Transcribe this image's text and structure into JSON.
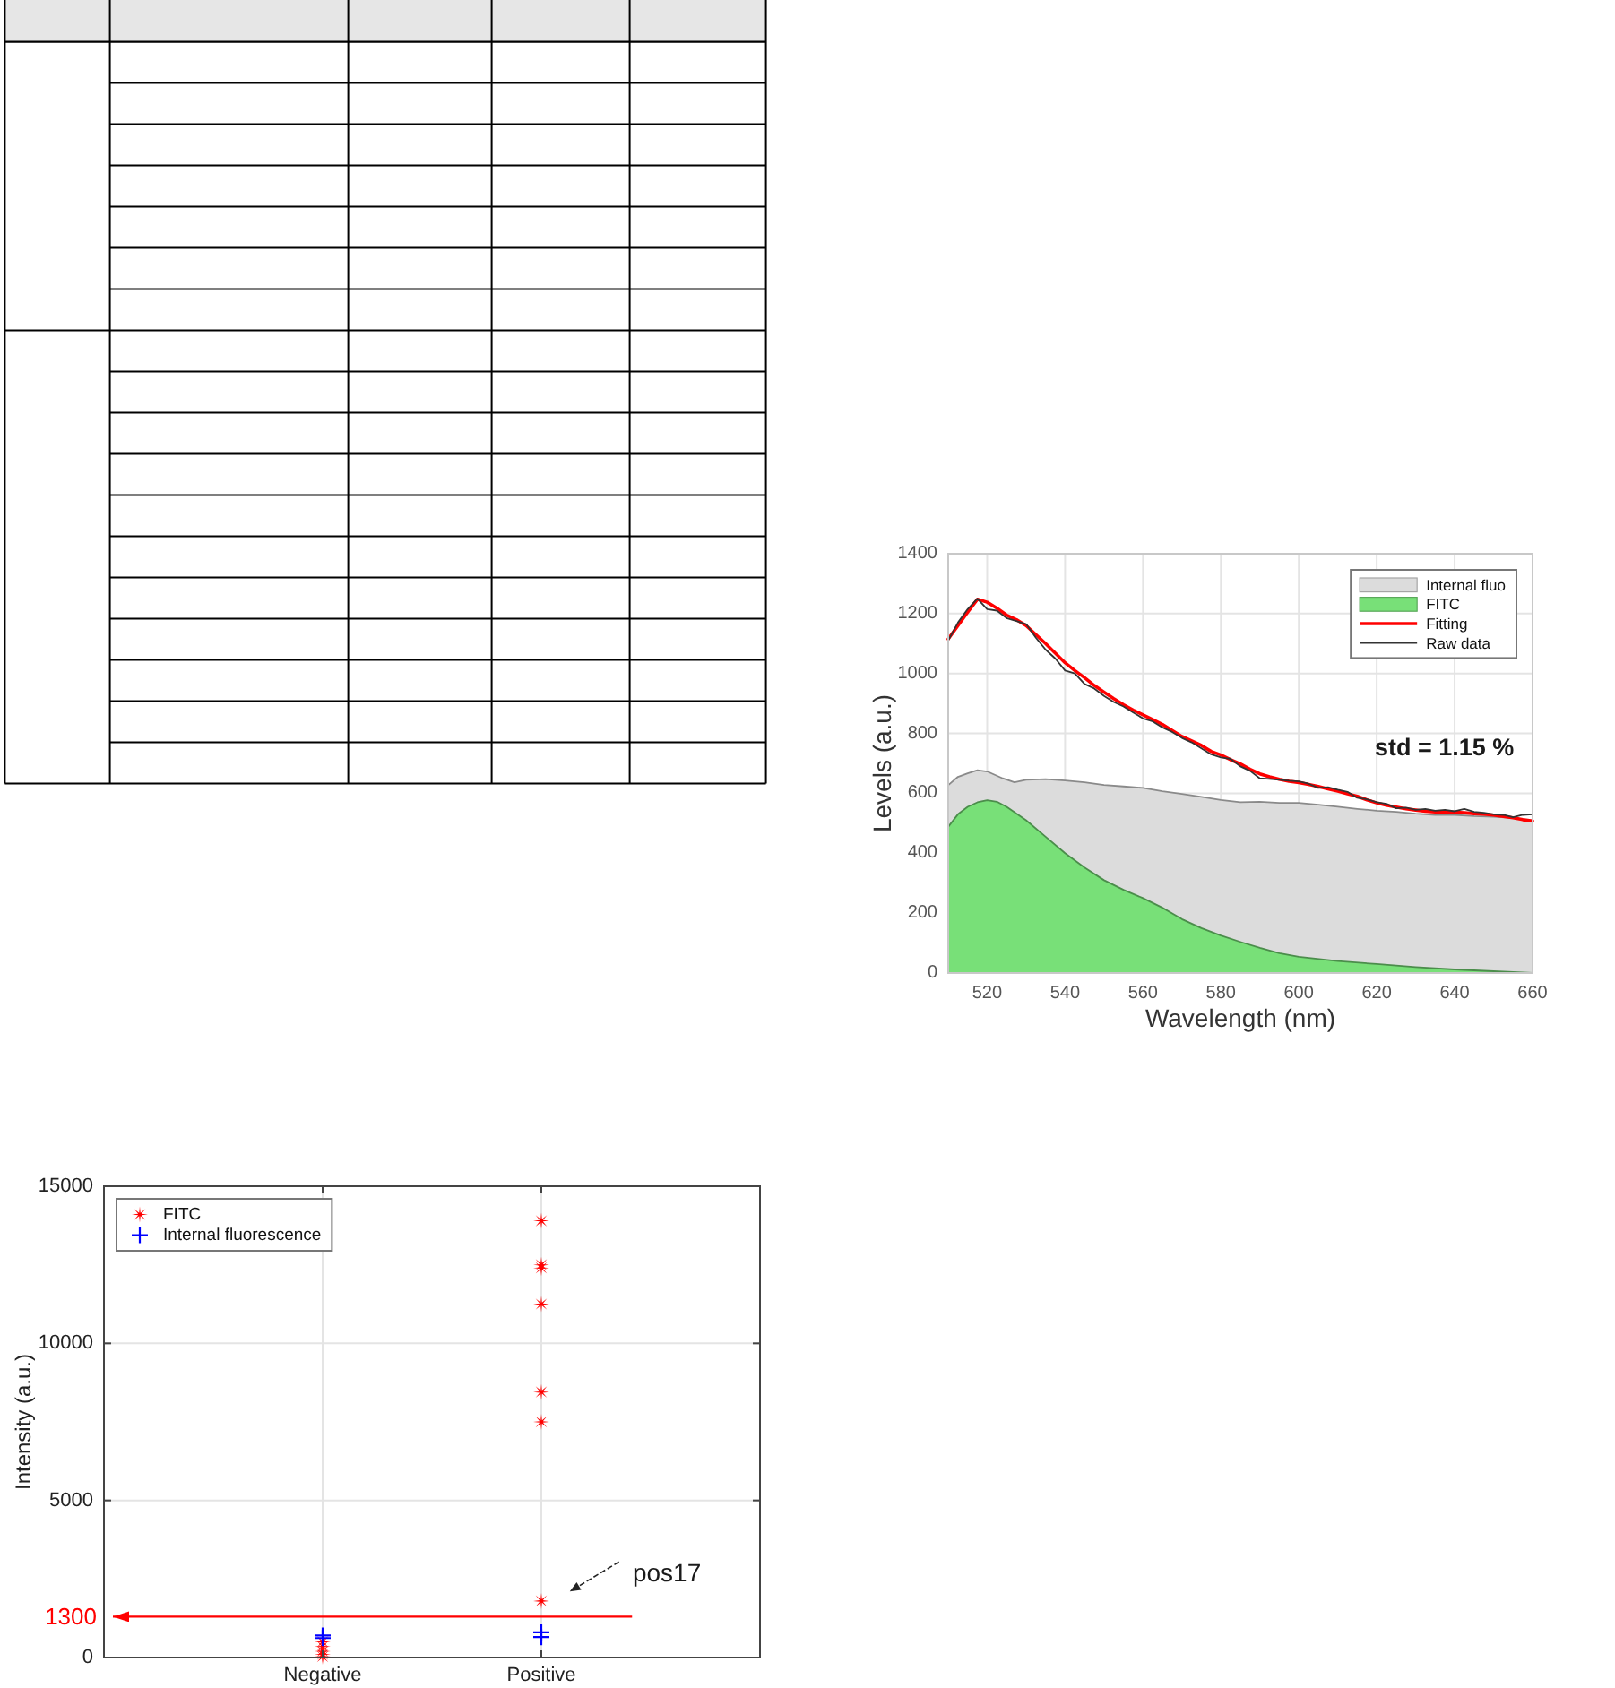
{
  "chart_data": [
    {
      "type": "area",
      "xlabel": "Wavelength (nm)",
      "ylabel": "Levels (a.u.)",
      "xlim": [
        510,
        660
      ],
      "xticks": [
        520,
        540,
        560,
        580,
        600,
        620,
        640,
        660
      ],
      "ylim": [
        0,
        1400
      ],
      "yticks": [
        0,
        200,
        400,
        600,
        800,
        1000,
        1200,
        1400
      ],
      "grid": true,
      "legend": "top right",
      "annotations": [
        "std = 1.15 %"
      ],
      "series": [
        {
          "name": "Internal fluo",
          "color": "#dcdcdc",
          "x": [
            510,
            512.5,
            515,
            517.5,
            520,
            524,
            527,
            530,
            535,
            540,
            545,
            550,
            555,
            560,
            565,
            570,
            575,
            580,
            585,
            590,
            595,
            600,
            605,
            610,
            615,
            620,
            625,
            630,
            635,
            640,
            645,
            650,
            655,
            660
          ],
          "values": [
            627,
            655,
            667,
            677,
            673,
            650,
            637,
            645,
            647,
            643,
            637,
            628,
            623,
            618,
            607,
            598,
            588,
            578,
            570,
            572,
            568,
            568,
            562,
            555,
            548,
            542,
            538,
            532,
            528,
            528,
            524,
            522,
            518,
            508
          ]
        },
        {
          "name": "FITC",
          "color": "#78e078",
          "x": [
            510,
            512.5,
            515,
            517.5,
            520,
            522.5,
            525,
            530,
            535,
            540,
            545,
            550,
            555,
            560,
            565,
            570,
            575,
            580,
            585,
            590,
            595,
            600,
            610,
            620,
            630,
            640,
            650,
            660
          ],
          "values": [
            488,
            530,
            555,
            570,
            577,
            572,
            555,
            510,
            455,
            400,
            352,
            310,
            278,
            250,
            218,
            180,
            150,
            125,
            104,
            84,
            66,
            54,
            40,
            30,
            20,
            12,
            6,
            0
          ]
        },
        {
          "name": "Fitting",
          "type": "line",
          "color": "#ff0000",
          "x": [
            510,
            512.5,
            515,
            517.5,
            520,
            522.5,
            525,
            527.5,
            530,
            532.5,
            535,
            537.5,
            540,
            542.5,
            545,
            547.5,
            550,
            552.5,
            555,
            557.5,
            560,
            562.5,
            565,
            567.5,
            570,
            572.5,
            575,
            577.5,
            580,
            582.5,
            585,
            587.5,
            590,
            592.5,
            595,
            597.5,
            600,
            602.5,
            605,
            607.5,
            610,
            612.5,
            615,
            617.5,
            620,
            622.5,
            625,
            627.5,
            630,
            632.5,
            635,
            637.5,
            640,
            642.5,
            645,
            647.5,
            650,
            652.5,
            655,
            657.5,
            660
          ],
          "values": [
            1115,
            1160,
            1205,
            1248,
            1238,
            1218,
            1195,
            1180,
            1160,
            1130,
            1100,
            1068,
            1036,
            1010,
            986,
            960,
            938,
            916,
            896,
            878,
            862,
            846,
            830,
            810,
            790,
            775,
            760,
            740,
            728,
            712,
            698,
            680,
            665,
            655,
            647,
            640,
            636,
            630,
            623,
            615,
            607,
            598,
            590,
            578,
            568,
            560,
            554,
            548,
            544,
            540,
            538,
            538,
            537,
            535,
            532,
            530,
            527,
            523,
            518,
            512,
            508
          ]
        },
        {
          "name": "Raw data",
          "type": "line",
          "color": "#333333",
          "x": [
            510,
            512.5,
            515,
            517.5,
            520,
            522.5,
            525,
            527.5,
            530,
            532.5,
            535,
            537.5,
            540,
            542.5,
            545,
            547.5,
            550,
            552.5,
            555,
            557.5,
            560,
            562.5,
            565,
            567.5,
            570,
            572.5,
            575,
            577.5,
            580,
            582.5,
            585,
            587.5,
            590,
            592.5,
            595,
            597.5,
            600,
            602.5,
            605,
            607.5,
            610,
            612.5,
            615,
            617.5,
            620,
            622.5,
            625,
            627.5,
            630,
            632.5,
            635,
            637.5,
            640,
            642.5,
            645,
            647.5,
            650,
            652.5,
            655,
            657.5,
            660
          ],
          "values": [
            1110,
            1170,
            1215,
            1250,
            1215,
            1210,
            1185,
            1175,
            1165,
            1120,
            1080,
            1050,
            1010,
            1000,
            965,
            950,
            925,
            905,
            890,
            870,
            850,
            840,
            820,
            805,
            785,
            770,
            750,
            730,
            720,
            715,
            690,
            675,
            650,
            648,
            645,
            642,
            640,
            632,
            618,
            620,
            612,
            605,
            585,
            580,
            570,
            565,
            550,
            552,
            545,
            548,
            542,
            545,
            540,
            548,
            538,
            535,
            530,
            528,
            520,
            528,
            530
          ]
        }
      ]
    },
    {
      "type": "scatter",
      "ylabel": "Intensity (a.u.)",
      "categories": [
        "Negative",
        "Positive"
      ],
      "ylim": [
        0,
        15000
      ],
      "yticks": [
        0,
        5000,
        10000,
        15000
      ],
      "grid": true,
      "legend": "top left",
      "ref_lines": [
        {
          "axis": "y",
          "value": 1300,
          "label": "1300",
          "color": "#ff0000"
        }
      ],
      "annotations": [
        "pos17"
      ],
      "series": [
        {
          "name": "FITC",
          "color": "#ff0000",
          "marker": "star",
          "x": [
            "Negative",
            "Negative",
            "Negative",
            "Negative",
            "Negative",
            "Positive",
            "Positive",
            "Positive",
            "Positive",
            "Positive",
            "Positive",
            "Positive"
          ],
          "values": [
            500,
            350,
            200,
            100,
            30,
            13900,
            12500,
            12400,
            11250,
            8450,
            7500,
            1800
          ]
        },
        {
          "name": "Internal fluorescence",
          "color": "#0000ff",
          "marker": "cross",
          "x": [
            "Negative",
            "Negative",
            "Positive",
            "Positive"
          ],
          "values": [
            700,
            620,
            800,
            650
          ]
        }
      ]
    }
  ]
}
